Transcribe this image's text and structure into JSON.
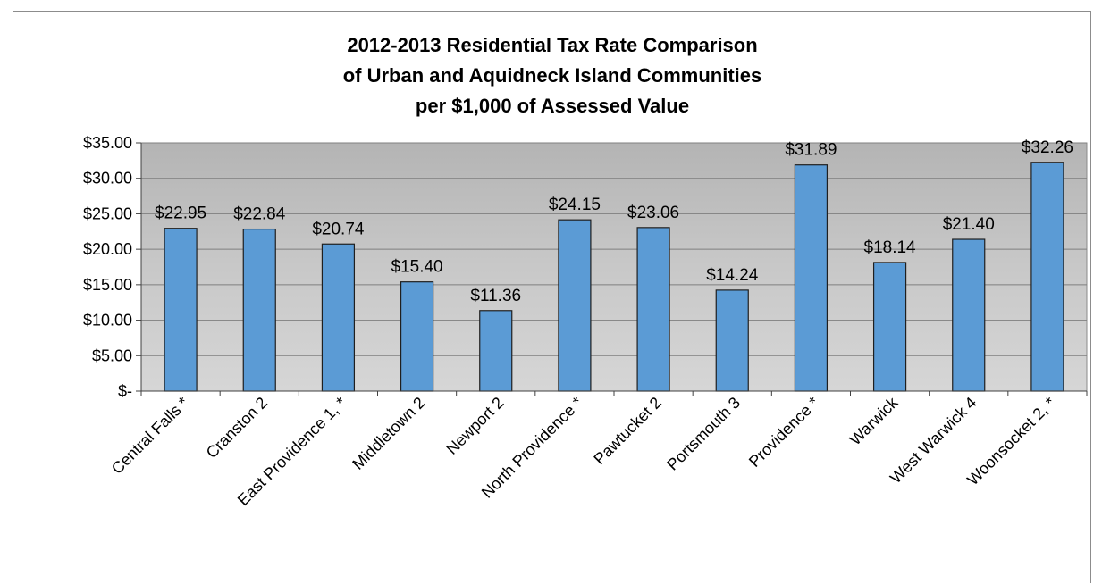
{
  "chart_data": {
    "type": "bar",
    "title": [
      "2012-2013 Residential Tax Rate Comparison",
      "of Urban and Aquidneck Island Communities",
      "per $1,000 of Assessed Value"
    ],
    "categories": [
      "Central Falls *",
      "Cranston 2",
      "East Providence 1, *",
      "Middletown 2",
      "Newport 2",
      "North Providence *",
      "Pawtucket 2",
      "Portsmouth  3",
      "Providence *",
      "Warwick",
      "West Warwick 4",
      "Woonsocket 2, *"
    ],
    "values": [
      22.95,
      22.84,
      20.74,
      15.4,
      11.36,
      24.15,
      23.06,
      14.24,
      31.89,
      18.14,
      21.4,
      32.26
    ],
    "data_labels": [
      "$22.95",
      "$22.84",
      "$20.74",
      "$15.40",
      "$11.36",
      "$24.15",
      "$23.06",
      "$14.24",
      "$31.89",
      "$18.14",
      "$21.40",
      "$32.26"
    ],
    "y_ticks": [
      0,
      5,
      10,
      15,
      20,
      25,
      30,
      35
    ],
    "y_tick_labels": [
      "$-",
      "$5.00",
      "$10.00",
      "$15.00",
      "$20.00",
      "$25.00",
      "$30.00",
      "$35.00"
    ],
    "ylim": [
      0,
      35
    ],
    "xlabel": "",
    "ylabel": "",
    "grid": true,
    "legend": "none",
    "colors": {
      "bar_fill": "#5b9bd5",
      "bar_stroke": "#1f1f1f",
      "plot_background": "#c0c0c0",
      "gridline": "#7f7f7f"
    }
  }
}
